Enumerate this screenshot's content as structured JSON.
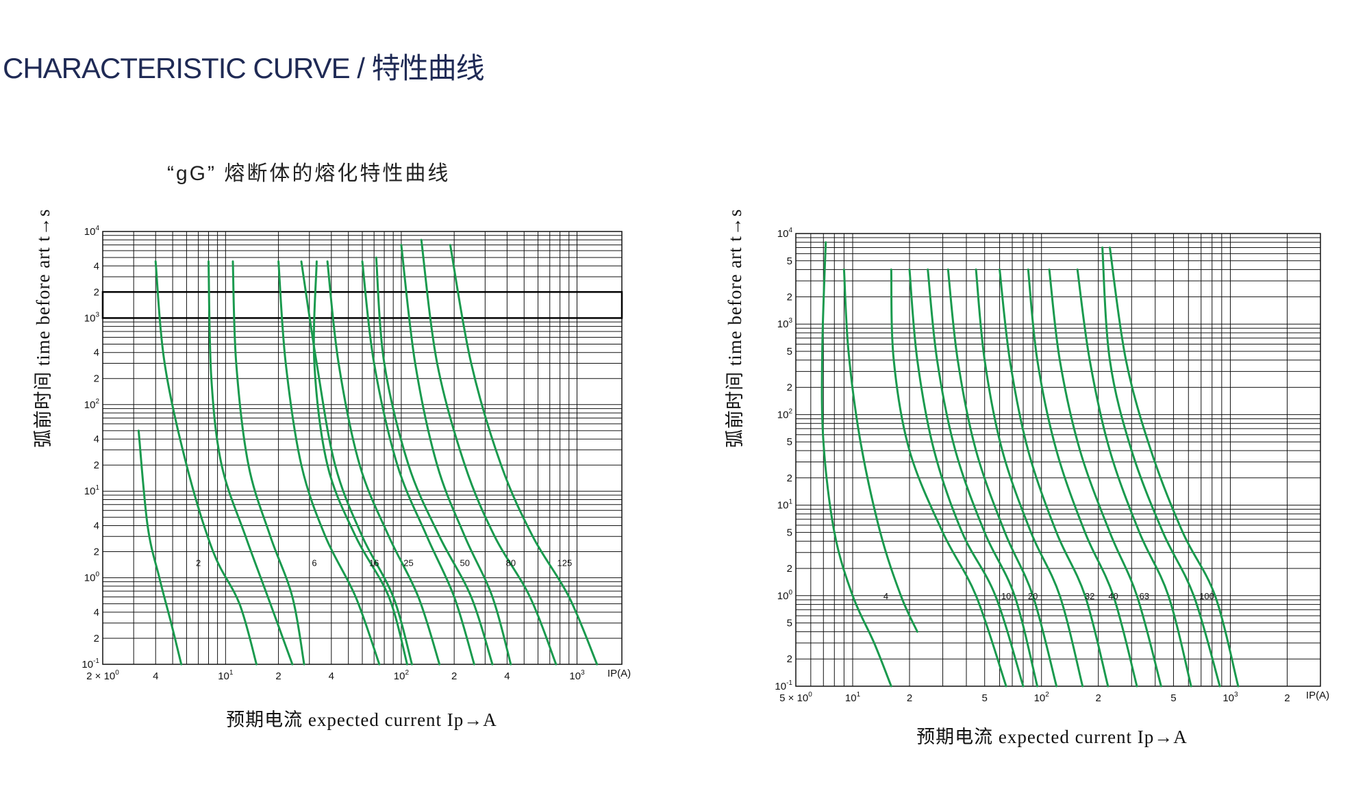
{
  "page": {
    "title": "CHARACTERISTIC CURVE / 特性曲线",
    "subtitle": "“gG” 熔断体的熔化特性曲线"
  },
  "colors": {
    "curve": "#1a9a4e",
    "grid": "#111111",
    "title": "#1f2a55"
  },
  "chart_data": [
    {
      "type": "line",
      "title": "",
      "xlabel": "预期电流 expected current Ip→A",
      "ylabel": "弧前时间 time before art t→s",
      "x_scale": "log",
      "y_scale": "log",
      "xlim": [
        2,
        1800
      ],
      "ylim": [
        0.1,
        10000
      ],
      "x_unit_label": "IP(A)",
      "x_ticks": [
        {
          "v": 2,
          "t": "2 × 10",
          "e": "0"
        },
        {
          "v": 4,
          "t": "4"
        },
        {
          "v": 10,
          "t": "10",
          "e": "1"
        },
        {
          "v": 20,
          "t": "2"
        },
        {
          "v": 40,
          "t": "4"
        },
        {
          "v": 100,
          "t": "10",
          "e": "2"
        },
        {
          "v": 200,
          "t": "2"
        },
        {
          "v": 400,
          "t": "4"
        },
        {
          "v": 1000,
          "t": "10",
          "e": "3"
        }
      ],
      "y_ticks": [
        {
          "v": 0.1,
          "t": "10",
          "e": "-1"
        },
        {
          "v": 0.2,
          "t": "2"
        },
        {
          "v": 0.4,
          "t": "4"
        },
        {
          "v": 1,
          "t": "10",
          "e": "0"
        },
        {
          "v": 2,
          "t": "2"
        },
        {
          "v": 4,
          "t": "4"
        },
        {
          "v": 10,
          "t": "10",
          "e": "1"
        },
        {
          "v": 20,
          "t": "2"
        },
        {
          "v": 40,
          "t": "4"
        },
        {
          "v": 100,
          "t": "10",
          "e": "2"
        },
        {
          "v": 200,
          "t": "2"
        },
        {
          "v": 400,
          "t": "4"
        },
        {
          "v": 1000,
          "t": "10",
          "e": "3"
        },
        {
          "v": 2000,
          "t": "2"
        },
        {
          "v": 4000,
          "t": "4"
        },
        {
          "v": 10000,
          "t": "10",
          "e": "4"
        }
      ],
      "highlight_band": [
        1000,
        2000
      ],
      "rating_labels_y": 1.5,
      "series": [
        {
          "name": "2",
          "label_x": 7,
          "points": [
            [
              3.2,
              50
            ],
            [
              3.6,
              4
            ],
            [
              4.2,
              1
            ],
            [
              4.9,
              0.3
            ],
            [
              5.6,
              0.1
            ]
          ]
        },
        {
          "name": "",
          "points": [
            [
              4,
              4500
            ],
            [
              4.5,
              300
            ],
            [
              6,
              20
            ],
            [
              8.5,
              2
            ],
            [
              12,
              0.5
            ],
            [
              15,
              0.1
            ]
          ]
        },
        {
          "name": "",
          "points": [
            [
              8,
              4500
            ],
            [
              8.3,
              200
            ],
            [
              9.5,
              20
            ],
            [
              13,
              3
            ],
            [
              18,
              0.5
            ],
            [
              24,
              0.1
            ]
          ]
        },
        {
          "name": "6",
          "label_x": 32,
          "points": [
            [
              11,
              4500
            ],
            [
              11.5,
              300
            ],
            [
              13.5,
              20
            ],
            [
              18,
              3
            ],
            [
              24,
              0.6
            ],
            [
              28,
              0.1
            ]
          ]
        },
        {
          "name": "",
          "points": [
            [
              20,
              4500
            ],
            [
              22,
              300
            ],
            [
              27,
              20
            ],
            [
              37,
              3
            ],
            [
              55,
              0.6
            ],
            [
              75,
              0.1
            ]
          ]
        },
        {
          "name": "",
          "points": [
            [
              27,
              4500
            ],
            [
              33,
              300
            ],
            [
              42,
              20
            ],
            [
              60,
              3
            ],
            [
              90,
              0.6
            ],
            [
              115,
              0.1
            ]
          ]
        },
        {
          "name": "16",
          "label_x": 70,
          "points": [
            [
              33,
              4500
            ],
            [
              32,
              300
            ],
            [
              38,
              20
            ],
            [
              55,
              3
            ],
            [
              85,
              0.6
            ],
            [
              108,
              0.1
            ]
          ]
        },
        {
          "name": "",
          "points": [
            [
              38,
              4500
            ],
            [
              44,
              300
            ],
            [
              58,
              20
            ],
            [
              85,
              3
            ],
            [
              125,
              0.6
            ],
            [
              165,
              0.1
            ]
          ]
        },
        {
          "name": "25",
          "label_x": 110,
          "points": [
            [
              60,
              4500
            ],
            [
              70,
              300
            ],
            [
              95,
              20
            ],
            [
              140,
              3
            ],
            [
              200,
              0.6
            ],
            [
              260,
              0.1
            ]
          ]
        },
        {
          "name": "",
          "points": [
            [
              72,
              5000
            ],
            [
              80,
              300
            ],
            [
              110,
              20
            ],
            [
              165,
              3
            ],
            [
              250,
              0.6
            ],
            [
              330,
              0.1
            ]
          ]
        },
        {
          "name": "50",
          "label_x": 230,
          "points": [
            [
              100,
              7000
            ],
            [
              120,
              300
            ],
            [
              160,
              20
            ],
            [
              230,
              3
            ],
            [
              330,
              0.6
            ],
            [
              420,
              0.1
            ]
          ]
        },
        {
          "name": "80",
          "label_x": 420,
          "points": [
            [
              130,
              8000
            ],
            [
              160,
              300
            ],
            [
              230,
              20
            ],
            [
              340,
              3
            ],
            [
              540,
              0.6
            ],
            [
              760,
              0.1
            ]
          ]
        },
        {
          "name": "125",
          "label_x": 850,
          "points": [
            [
              190,
              7000
            ],
            [
              250,
              300
            ],
            [
              370,
              20
            ],
            [
              560,
              3
            ],
            [
              900,
              0.6
            ],
            [
              1300,
              0.1
            ]
          ]
        }
      ]
    },
    {
      "type": "line",
      "title": "",
      "xlabel": "预期电流 expected current Ip→A",
      "ylabel": "弧前时间 time before art t→s",
      "x_scale": "log",
      "y_scale": "log",
      "xlim": [
        5,
        3000
      ],
      "ylim": [
        0.1,
        10000
      ],
      "x_unit_label": "IP(A)",
      "x_ticks": [
        {
          "v": 5,
          "t": "5 × 10",
          "e": "0"
        },
        {
          "v": 10,
          "t": "10",
          "e": "1"
        },
        {
          "v": 20,
          "t": "2"
        },
        {
          "v": 50,
          "t": "5"
        },
        {
          "v": 100,
          "t": "10",
          "e": "2"
        },
        {
          "v": 200,
          "t": "2"
        },
        {
          "v": 500,
          "t": "5"
        },
        {
          "v": 1000,
          "t": "10",
          "e": "3"
        },
        {
          "v": 2000,
          "t": "2"
        }
      ],
      "y_ticks": [
        {
          "v": 0.1,
          "t": "10",
          "e": "-1"
        },
        {
          "v": 0.2,
          "t": "2"
        },
        {
          "v": 0.5,
          "t": "5"
        },
        {
          "v": 1,
          "t": "10",
          "e": "0"
        },
        {
          "v": 2,
          "t": "2"
        },
        {
          "v": 5,
          "t": "5"
        },
        {
          "v": 10,
          "t": "10",
          "e": "1"
        },
        {
          "v": 20,
          "t": "2"
        },
        {
          "v": 50,
          "t": "5"
        },
        {
          "v": 100,
          "t": "10",
          "e": "2"
        },
        {
          "v": 200,
          "t": "2"
        },
        {
          "v": 500,
          "t": "5"
        },
        {
          "v": 1000,
          "t": "10",
          "e": "3"
        },
        {
          "v": 2000,
          "t": "2"
        },
        {
          "v": 5000,
          "t": "5"
        },
        {
          "v": 10000,
          "t": "10",
          "e": "4"
        }
      ],
      "rating_labels_y": 1.0,
      "series": [
        {
          "name": "",
          "points": [
            [
              7.2,
              8000
            ],
            [
              6.9,
              500
            ],
            [
              7,
              50
            ],
            [
              8,
              5
            ],
            [
              10,
              1
            ],
            [
              13,
              0.3
            ],
            [
              16,
              0.1
            ]
          ]
        },
        {
          "name": "4",
          "label_x": 15,
          "points": [
            [
              9,
              4000
            ],
            [
              9.5,
              500
            ],
            [
              11,
              50
            ],
            [
              14,
              5
            ],
            [
              18,
              1
            ],
            [
              22,
              0.4
            ]
          ]
        },
        {
          "name": "",
          "points": [
            [
              16,
              4000
            ],
            [
              16.5,
              400
            ],
            [
              20,
              40
            ],
            [
              30,
              5
            ],
            [
              45,
              1
            ],
            [
              65,
              0.1
            ]
          ]
        },
        {
          "name": "",
          "points": [
            [
              20,
              4000
            ],
            [
              22,
              400
            ],
            [
              27,
              40
            ],
            [
              38,
              5
            ],
            [
              57,
              1
            ],
            [
              80,
              0.1
            ]
          ]
        },
        {
          "name": "10",
          "label_x": 65,
          "points": [
            [
              25,
              4000
            ],
            [
              28,
              400
            ],
            [
              35,
              40
            ],
            [
              50,
              5
            ],
            [
              72,
              1
            ],
            [
              95,
              0.1
            ]
          ]
        },
        {
          "name": "",
          "points": [
            [
              32,
              4000
            ],
            [
              36,
              400
            ],
            [
              45,
              40
            ],
            [
              64,
              5
            ],
            [
              90,
              1
            ],
            [
              120,
              0.1
            ]
          ]
        },
        {
          "name": "20",
          "label_x": 90,
          "points": [
            [
              45,
              4000
            ],
            [
              50,
              400
            ],
            [
              62,
              40
            ],
            [
              88,
              5
            ],
            [
              125,
              1
            ],
            [
              165,
              0.1
            ]
          ]
        },
        {
          "name": "",
          "points": [
            [
              60,
              4000
            ],
            [
              68,
              400
            ],
            [
              85,
              40
            ],
            [
              120,
              5
            ],
            [
              170,
              1
            ],
            [
              225,
              0.1
            ]
          ]
        },
        {
          "name": "32",
          "label_x": 180,
          "points": [
            [
              85,
              4000
            ],
            [
              95,
              400
            ],
            [
              120,
              40
            ],
            [
              170,
              5
            ],
            [
              240,
              1
            ],
            [
              320,
              0.1
            ]
          ]
        },
        {
          "name": "40",
          "label_x": 240,
          "points": [
            [
              110,
              4000
            ],
            [
              125,
              400
            ],
            [
              160,
              40
            ],
            [
              230,
              5
            ],
            [
              320,
              1
            ],
            [
              430,
              0.1
            ]
          ]
        },
        {
          "name": "63",
          "label_x": 350,
          "points": [
            [
              155,
              4000
            ],
            [
              180,
              400
            ],
            [
              230,
              40
            ],
            [
              330,
              5
            ],
            [
              470,
              1
            ],
            [
              620,
              0.1
            ]
          ]
        },
        {
          "name": "100",
          "label_x": 750,
          "points": [
            [
              230,
              7000
            ],
            [
              280,
              400
            ],
            [
              380,
              40
            ],
            [
              560,
              5
            ],
            [
              830,
              1
            ],
            [
              1100,
              0.1
            ]
          ]
        },
        {
          "name": "",
          "points": [
            [
              210,
              7000
            ],
            [
              230,
              400
            ],
            [
              300,
              40
            ],
            [
              440,
              5
            ],
            [
              640,
              1
            ],
            [
              880,
              0.1
            ]
          ]
        }
      ]
    }
  ]
}
